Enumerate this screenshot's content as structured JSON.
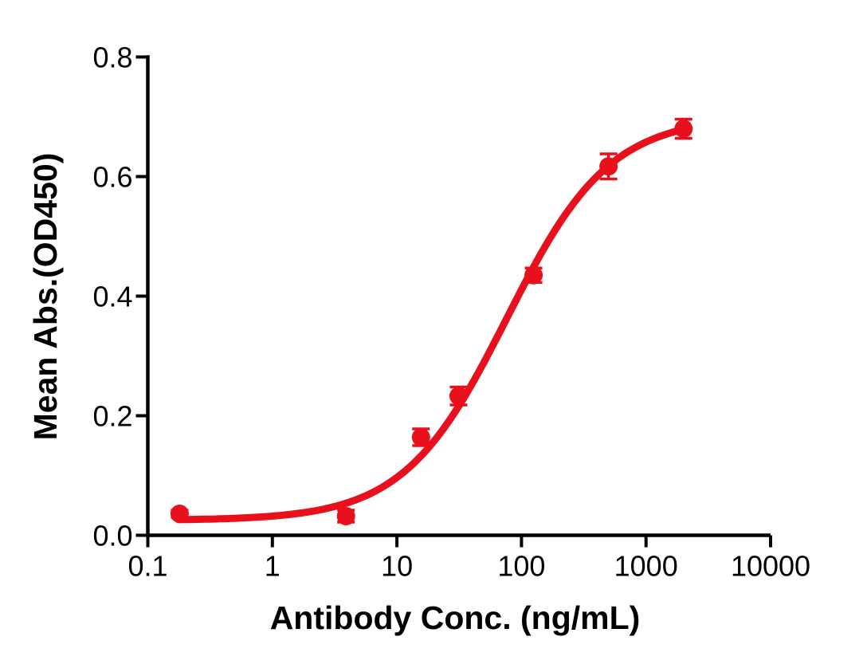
{
  "figure": {
    "background": "#ffffff",
    "axis_color": "#000000",
    "series_color": "#e8101c"
  },
  "chart_data": {
    "type": "scatter",
    "title": "",
    "xlabel": "Antibody Conc. (ng/mL)",
    "ylabel": "Mean Abs.(OD450)",
    "x_scale": "log10",
    "xlim": [
      0.1,
      10000
    ],
    "ylim": [
      0.0,
      0.8
    ],
    "x_ticks": [
      0.1,
      1,
      10,
      100,
      1000,
      10000
    ],
    "x_tick_labels": [
      "0.1",
      "1",
      "10",
      "100",
      "1000",
      "10000"
    ],
    "y_ticks": [
      0.0,
      0.2,
      0.4,
      0.6,
      0.8
    ],
    "y_tick_labels": [
      "0.0",
      "0.2",
      "0.4",
      "0.6",
      "0.8"
    ],
    "grid": false,
    "legend": "none",
    "series": [
      {
        "name": "series-1",
        "marker": "filled-circle",
        "color": "#e8101c",
        "x": [
          0.18,
          3.9,
          15.6,
          31.25,
          125,
          500,
          2000
        ],
        "y": [
          0.036,
          0.032,
          0.164,
          0.233,
          0.435,
          0.617,
          0.68
        ],
        "y_err": [
          0.006,
          0.01,
          0.014,
          0.015,
          0.012,
          0.021,
          0.016
        ]
      }
    ],
    "fit_curve": {
      "model": "4PL",
      "bottom": 0.025,
      "top": 0.7,
      "ec50": 76,
      "hill": 1.05,
      "x_start": 0.176,
      "x_end": 1990
    }
  }
}
